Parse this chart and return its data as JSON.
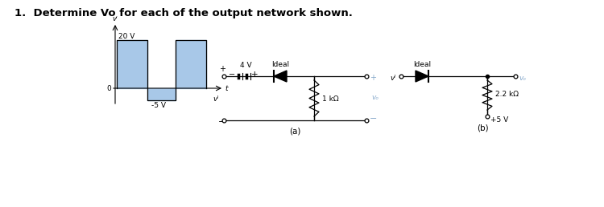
{
  "title": "1.  Determine Vo for each of the output network shown.",
  "title_fontsize": 9.5,
  "title_fontweight": "bold",
  "bg_color": "#ffffff",
  "text_color": "#000000",
  "blue_color": "#a8c8e8",
  "vo_color": "#88aacc",
  "wave_20v": "20 V",
  "wave_m5v": "-5 V",
  "wave_vi_sup": "vᴵ",
  "wave_0": "0",
  "wave_t": "t",
  "ca_4v": "4 V",
  "ca_ideal": "Ideal",
  "ca_1kohm": "1 kΩ",
  "ca_vi": "vᴵ",
  "ca_vo": "vₒ",
  "ca_plus": "+",
  "ca_minus": "−",
  "ca_label": "(a)",
  "cb_ideal": "Ideal",
  "cb_22kohm": "2.2 kΩ",
  "cb_vi": "vᴵ",
  "cb_vo": "vₒ",
  "cb_v5": "+5 V",
  "cb_label": "(b)"
}
